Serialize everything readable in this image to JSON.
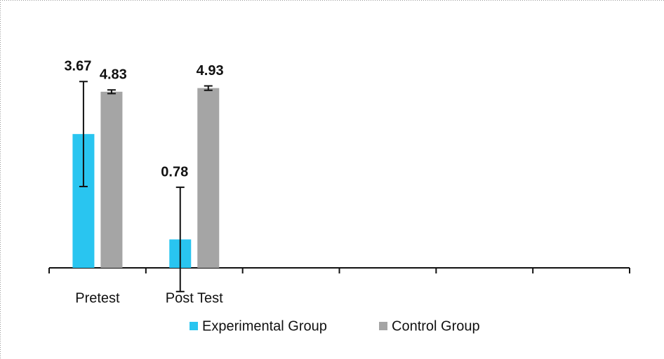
{
  "chart_data": {
    "type": "bar",
    "categories": [
      "Pretest",
      "Post Test",
      null,
      null,
      null,
      null
    ],
    "series": [
      {
        "name": "Experimental Group",
        "color": "#29c5f0",
        "values": [
          3.67,
          0.78,
          null,
          null,
          null,
          null
        ],
        "errors": [
          1.44,
          1.43,
          null,
          null,
          null,
          null
        ]
      },
      {
        "name": "Control Group",
        "color": "#a5a5a5",
        "values": [
          4.83,
          4.93,
          null,
          null,
          null,
          null
        ],
        "errors": [
          0.05,
          0.06,
          null,
          null,
          null,
          null
        ]
      }
    ],
    "ylim": [
      0,
      7
    ],
    "legend": "bottom"
  }
}
